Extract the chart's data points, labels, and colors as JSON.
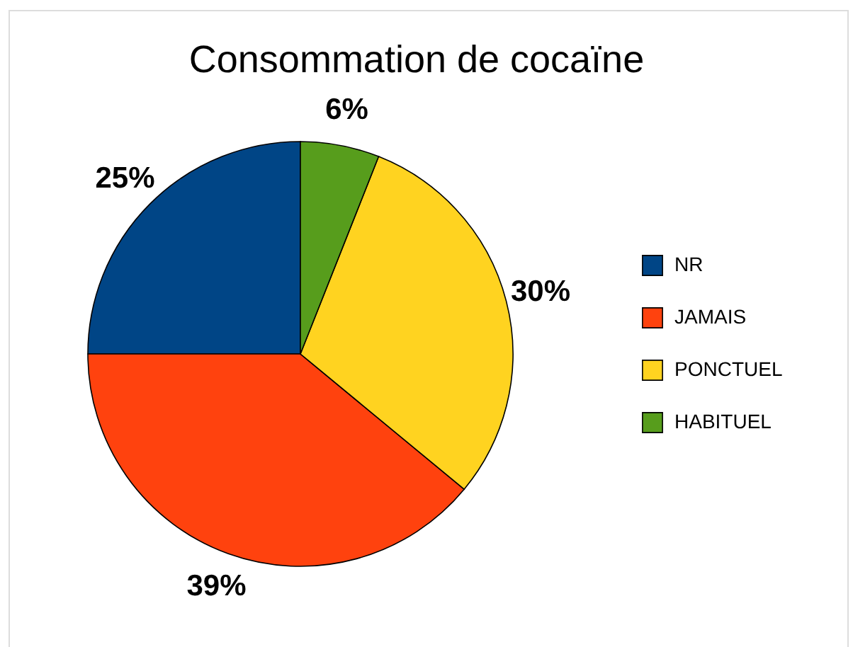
{
  "chart_data": {
    "type": "pie",
    "title": "Consommation de cocaïne",
    "categories": [
      "NR",
      "JAMAIS",
      "PONCTUEL",
      "HABITUEL"
    ],
    "values": [
      25,
      39,
      30,
      6
    ],
    "colors": [
      "#004586",
      "#ff420e",
      "#ffd320",
      "#579d1c"
    ],
    "value_labels": [
      "25%",
      "39%",
      "30%",
      "6%"
    ],
    "legend": "right"
  }
}
